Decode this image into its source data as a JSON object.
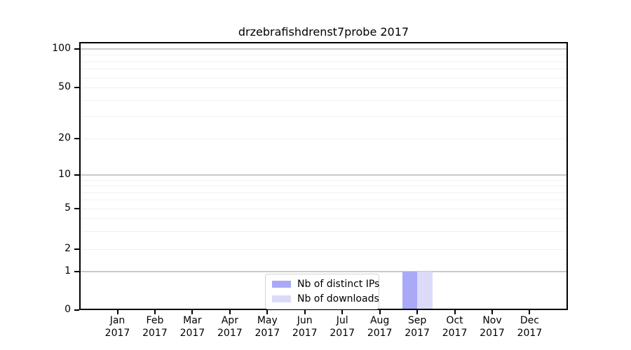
{
  "chart_data": {
    "type": "bar",
    "title": "drzebrafishdrenst7probe 2017",
    "categories": [
      "Jan 2017",
      "Feb 2017",
      "Mar 2017",
      "Apr 2017",
      "May 2017",
      "Jun 2017",
      "Jul 2017",
      "Aug 2017",
      "Sep 2017",
      "Oct 2017",
      "Nov 2017",
      "Dec 2017"
    ],
    "series": [
      {
        "name": "Nb of distinct IPs",
        "color": "#a9a9f8",
        "values": [
          0,
          0,
          0,
          0,
          0,
          0,
          0,
          0,
          1,
          0,
          0,
          0
        ]
      },
      {
        "name": "Nb of downloads",
        "color": "#dbdbf9",
        "values": [
          0,
          0,
          0,
          0,
          0,
          0,
          0,
          0,
          1,
          0,
          0,
          0
        ]
      }
    ],
    "xlabel": "",
    "ylabel": "",
    "y_ticks": [
      0,
      1,
      2,
      5,
      10,
      20,
      50,
      100
    ],
    "yscale": "log above 1, linear segment 0-1 (symlog-like)",
    "ylim": [
      0,
      113
    ],
    "grid": "major and minor horizontal gridlines",
    "legend_position": "lower center",
    "colors": {
      "background": "#ffffff",
      "axis": "#000000",
      "grid_major": "#c9c9c9",
      "grid_minor": "#f0f0f0",
      "legend_border": "#d4d4d4"
    }
  }
}
